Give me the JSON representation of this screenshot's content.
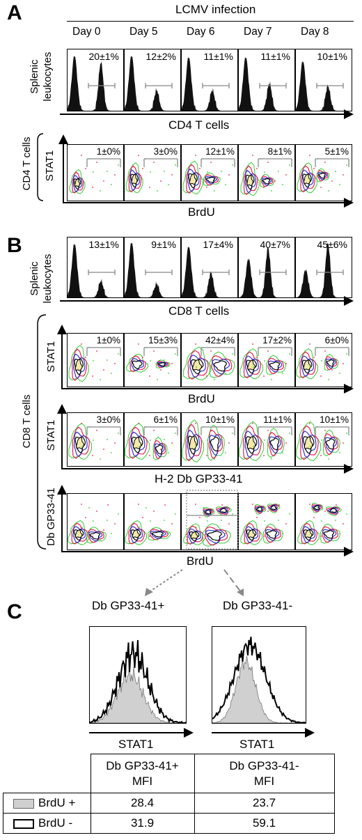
{
  "panel_a": {
    "letter": "A",
    "header": "LCMV infection",
    "days": [
      "Day 0",
      "Day 5",
      "Day 6",
      "Day 7",
      "Day 8"
    ],
    "hist_ylabel_line1": "Splenic",
    "hist_ylabel_line2": "leukocytes",
    "hist_percents": [
      "20±1%",
      "12±2%",
      "11±1%",
      "11±1%",
      "10±1%"
    ],
    "hist_xlabel": "CD4 T cells",
    "group_label": "CD4 T cells",
    "contour_ylabel": "STAT1",
    "contour_percents": [
      "1±0%",
      "3±0%",
      "12±1%",
      "8±1%",
      "5±1%"
    ],
    "contour_xlabel": "BrdU"
  },
  "panel_b": {
    "letter": "B",
    "hist_ylabel_line1": "Splenic",
    "hist_ylabel_line2": "leukocytes",
    "hist_percents": [
      "13±1%",
      "9±1%",
      "17±4%",
      "40±7%",
      "45±6%"
    ],
    "hist_xlabel": "CD8 T cells",
    "group_label": "CD8 T cells",
    "row1_ylabel": "STAT1",
    "row1_percents": [
      "1±0%",
      "15±3%",
      "42±4%",
      "17±2%",
      "6±0%"
    ],
    "row1_xlabel": "BrdU",
    "row2_ylabel": "STAT1",
    "row2_percents": [
      "3±0%",
      "6±1%",
      "10±1%",
      "11±1%",
      "10±1%"
    ],
    "row2_xlabel": "H-2 Db GP33-41",
    "row3_ylabel": "Db GP33-41",
    "row3_xlabel": "BrdU"
  },
  "panel_c": {
    "letter": "C",
    "left_title": "Db GP33-41+",
    "right_title": "Db GP33-41-",
    "left_xlabel": "STAT1",
    "right_xlabel": "STAT1",
    "table": {
      "col1_line1": "Db GP33-41+",
      "col1_line2": "MFI",
      "col2_line1": "Db GP33-41-",
      "col2_line2": "MFI",
      "rows": [
        {
          "label": "BrdU +",
          "v1": "28.4",
          "v2": "23.7"
        },
        {
          "label": "BrdU -",
          "v1": "31.9",
          "v2": "59.1"
        }
      ]
    }
  },
  "colors": {
    "contour_outer": "#33cc33",
    "contour_mid": "#e8204f",
    "contour_inner": "#3333cc",
    "contour_core": "#000000",
    "contour_fill": "#f3e9a8",
    "hist_fill": "#d0d0d0"
  }
}
